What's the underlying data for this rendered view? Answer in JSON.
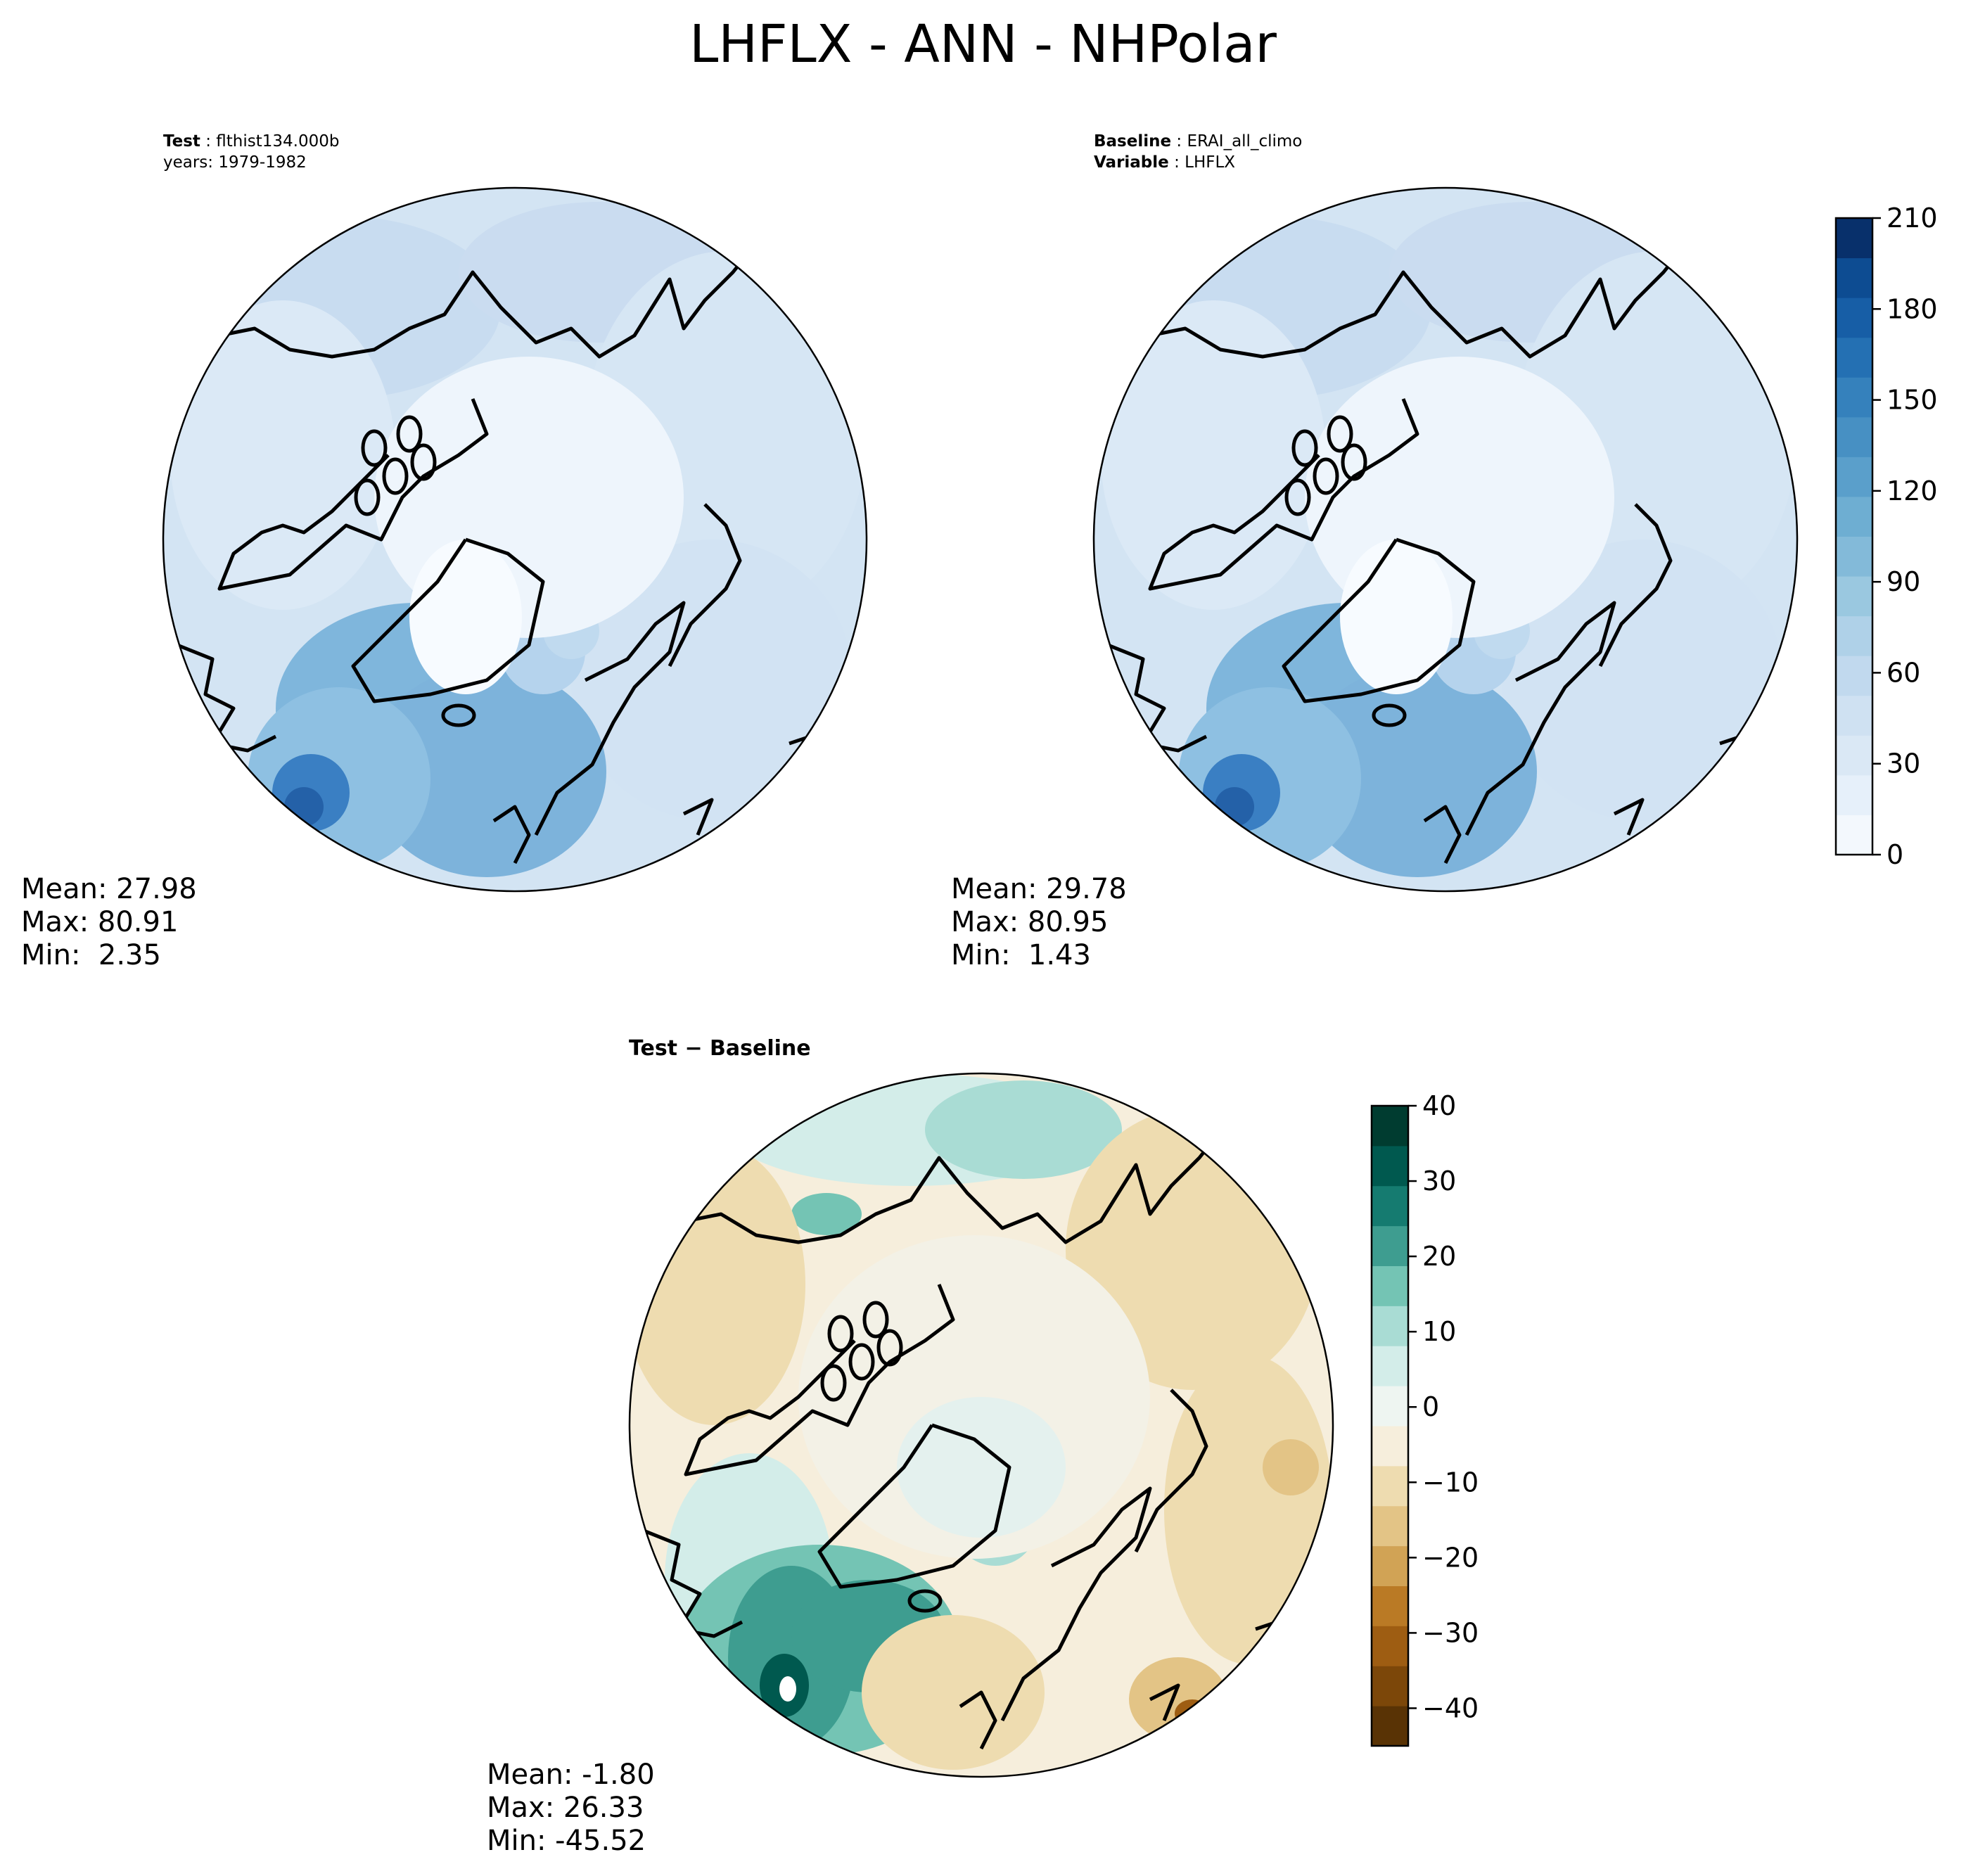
{
  "figure": {
    "title": "LHFLX - ANN - NHPolar"
  },
  "panels": [
    {
      "id": "test",
      "header_bold": "Test",
      "header_value": "flthist134.000b",
      "header2": "years: 1979-1982",
      "mean": "Mean: 27.98",
      "max": "Max: 80.91",
      "min": "Min:  2.35",
      "field": "sequential-test"
    },
    {
      "id": "baseline",
      "header_bold": "Baseline",
      "header_value": "ERAI_all_climo",
      "header2_bold": "Variable",
      "header2_value": "LHFLX",
      "mean": "Mean: 29.78",
      "max": "Max: 80.95",
      "min": "Min:  1.43",
      "field": "sequential-baseline"
    },
    {
      "id": "diff",
      "header_bold": "Test − Baseline",
      "mean": "Mean: -1.80",
      "max": "Max: 26.33",
      "min": "Min: -45.52",
      "field": "diverging"
    }
  ],
  "chart_data": [
    {
      "type": "heatmap",
      "projection": "north-polar-stereographic",
      "panel": "Test",
      "colorbar": {
        "min": 0,
        "max": 210,
        "ticks": [
          "0",
          "30",
          "60",
          "90",
          "120",
          "150",
          "180",
          "210"
        ],
        "colors": [
          "#f3f8fd",
          "#e6f0fa",
          "#dae8f5",
          "#cfe1f2",
          "#c1d9ee",
          "#afd1e8",
          "#9ac8e0",
          "#83bad9",
          "#6eaed2",
          "#5a9fcb",
          "#4790c3",
          "#3581bc",
          "#2470b3",
          "#175ea6",
          "#0d4c92",
          "#08306b"
        ]
      },
      "mean": 27.98,
      "max": 80.91,
      "min": 2.35
    },
    {
      "type": "heatmap",
      "projection": "north-polar-stereographic",
      "panel": "Baseline",
      "mean": 29.78,
      "max": 80.95,
      "min": 1.43
    },
    {
      "type": "heatmap",
      "projection": "north-polar-stereographic",
      "panel": "Test − Baseline",
      "colorbar": {
        "min": -45,
        "max": 40,
        "ticks": [
          "40",
          "30",
          "20",
          "10",
          "0",
          "−10",
          "−20",
          "−30",
          "−40"
        ],
        "tick_values": [
          40,
          30,
          20,
          10,
          0,
          -10,
          -20,
          -30,
          -40
        ],
        "colors": [
          "#593305",
          "#7c4709",
          "#9e5d12",
          "#ba7a25",
          "#d1a355",
          "#e3c486",
          "#eedcb0",
          "#f6eedc",
          "#eef5f1",
          "#d3ede9",
          "#a9dcd4",
          "#74c4b4",
          "#3e9d90",
          "#157b70",
          "#00594f",
          "#003c30"
        ]
      },
      "mean": -1.8,
      "max": 26.33,
      "min": -45.52
    }
  ]
}
